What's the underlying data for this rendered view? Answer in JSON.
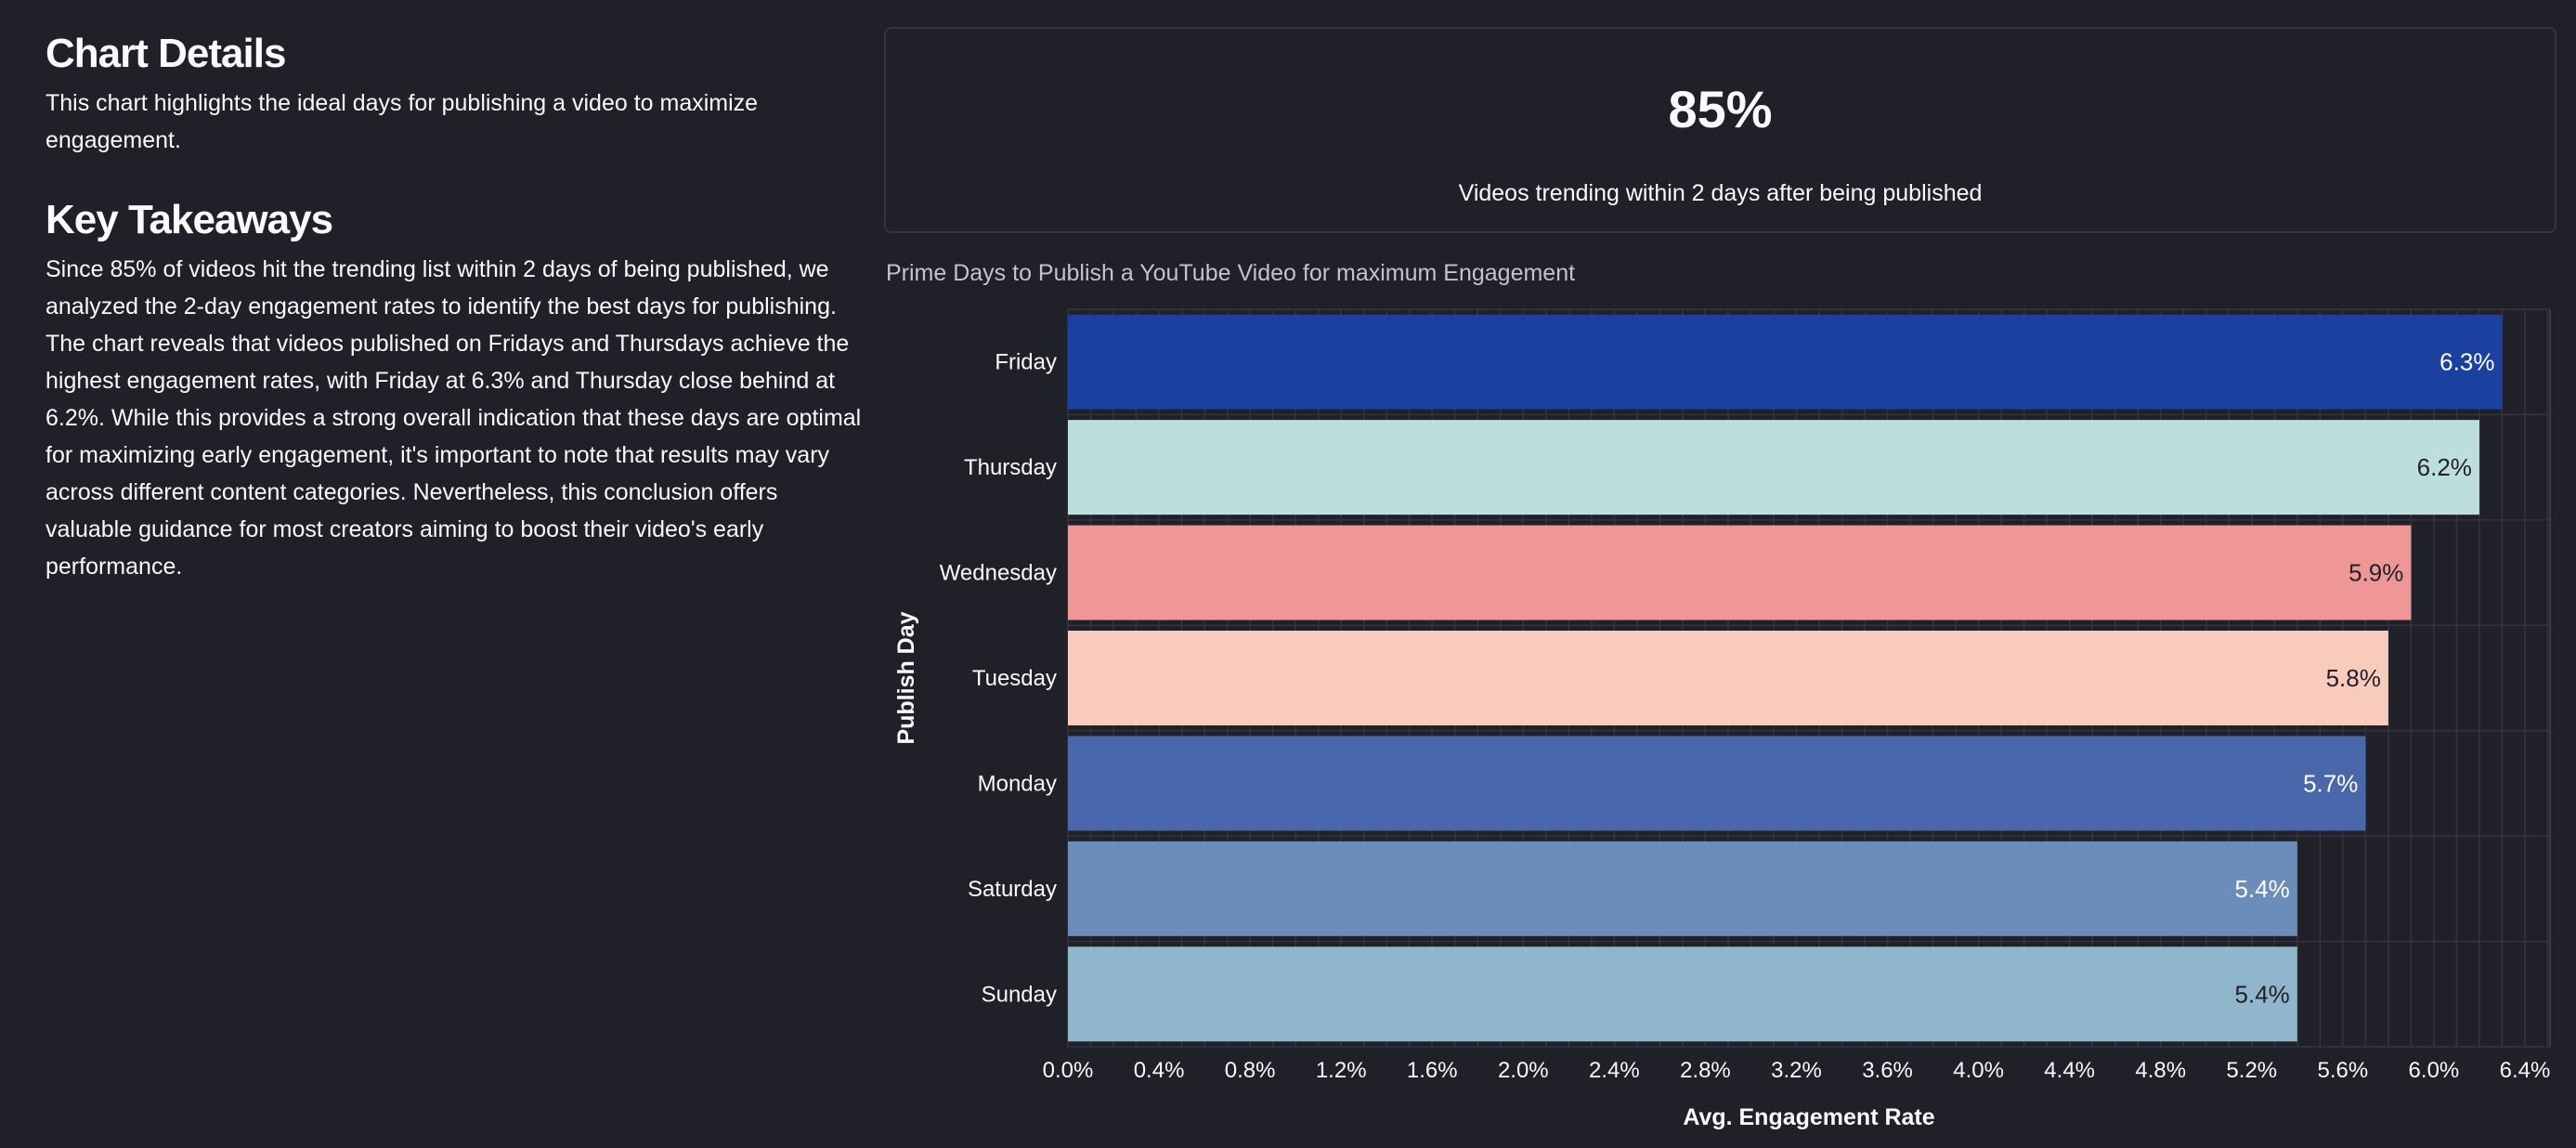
{
  "details": {
    "heading": "Chart Details",
    "text": "This chart highlights the ideal days for publishing a video to maximize engagement."
  },
  "takeaways": {
    "heading": "Key Takeaways",
    "text": "Since 85% of videos hit the trending list within 2 days of being published, we analyzed the 2-day engagement rates to identify the best days for publishing. The chart reveals that videos published on Fridays and Thursdays achieve the highest engagement rates, with Friday at 6.3% and Thursday close behind at 6.2%. While this provides a strong overall indication that these days are optimal for maximizing early engagement, it's important to note that results may vary across different content categories. Nevertheless, this conclusion offers valuable guidance for most creators aiming to boost their video's early performance."
  },
  "metric": {
    "value": "85%",
    "label": "Videos trending within 2 days after being published"
  },
  "chart_data": {
    "type": "bar",
    "orientation": "horizontal",
    "title": "Prime Days to Publish a YouTube Video for maximum Engagement",
    "xlabel": "Avg. Engagement Rate",
    "ylabel": "Publish Day",
    "categories": [
      "Friday",
      "Thursday",
      "Wednesday",
      "Tuesday",
      "Monday",
      "Saturday",
      "Sunday"
    ],
    "values": [
      6.3,
      6.2,
      5.9,
      5.8,
      5.7,
      5.4,
      5.4
    ],
    "value_labels": [
      "6.3%",
      "6.2%",
      "5.9%",
      "5.8%",
      "5.7%",
      "5.4%",
      "5.4%"
    ],
    "bar_colors": [
      "#1a40a0",
      "#bcdfdd",
      "#ef9796",
      "#f8cbbc",
      "#4a67ab",
      "#6c8cba",
      "#90b6cc"
    ],
    "label_colors": [
      "#ffffff",
      "#1f2028",
      "#1f2028",
      "#1f2028",
      "#ffffff",
      "#ffffff",
      "#1f2028"
    ],
    "xlim": [
      0,
      6.5
    ],
    "x_ticks": [
      0,
      0.4,
      0.8,
      1.2,
      1.6,
      2.0,
      2.4,
      2.8,
      3.2,
      3.6,
      4.0,
      4.4,
      4.8,
      5.2,
      5.6,
      6.0,
      6.4
    ],
    "x_tick_labels": [
      "0.0%",
      "0.4%",
      "0.8%",
      "1.2%",
      "1.6%",
      "2.0%",
      "2.4%",
      "2.8%",
      "3.2%",
      "3.6%",
      "4.0%",
      "4.4%",
      "4.8%",
      "5.2%",
      "5.6%",
      "6.0%",
      "6.4%"
    ],
    "grid": true
  }
}
